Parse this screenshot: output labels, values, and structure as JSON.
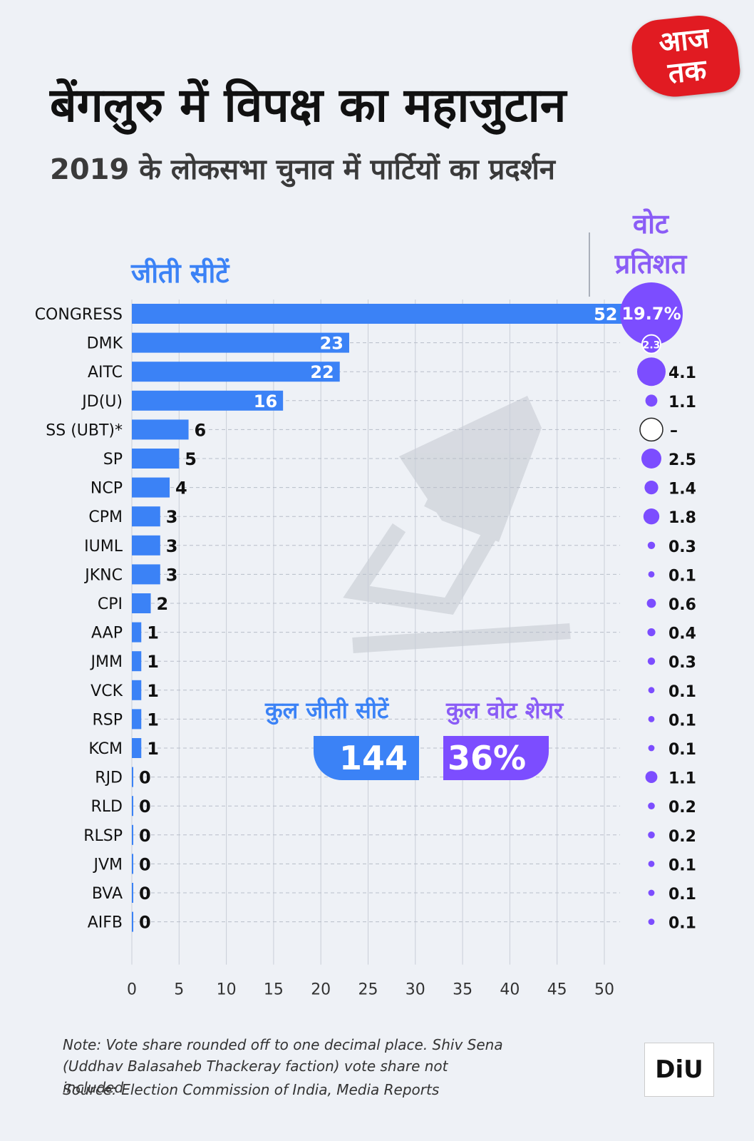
{
  "header": {
    "title": "बेंगलुरु में विपक्ष का महाजुटान",
    "subtitle": "2019 के लोकसभा चुनाव में पार्टियों का प्रदर्शन",
    "logo_line1": "आज",
    "logo_line2": "तक"
  },
  "seats_heading": "जीती सीटें",
  "vote_heading_line1": "वोट",
  "vote_heading_line2": "प्रतिशत",
  "totals": {
    "seats_label": "कुल जीती सीटें",
    "seats_value": "144",
    "vote_label": "कुल वोट शेयर",
    "vote_value": "36%"
  },
  "chart_data": {
    "type": "bar",
    "orientation": "horizontal",
    "categories": [
      "CONGRESS",
      "DMK",
      "AITC",
      "JD(U)",
      "SS (UBT)*",
      "SP",
      "NCP",
      "CPM",
      "IUML",
      "JKNC",
      "CPI",
      "AAP",
      "JMM",
      "VCK",
      "RSP",
      "KCM",
      "RJD",
      "RLD",
      "RLSP",
      "JVM",
      "BVA",
      "AIFB"
    ],
    "series": [
      {
        "name": "जीती सीटें",
        "values": [
          52,
          23,
          22,
          16,
          6,
          5,
          4,
          3,
          3,
          3,
          2,
          1,
          1,
          1,
          1,
          1,
          0,
          0,
          0,
          0,
          0,
          0
        ]
      },
      {
        "name": "वोट प्रतिशत",
        "values": [
          19.7,
          2.3,
          4.1,
          1.1,
          null,
          2.5,
          1.4,
          1.8,
          0.3,
          0.1,
          0.6,
          0.4,
          0.3,
          0.1,
          0.1,
          0.1,
          1.1,
          0.2,
          0.2,
          0.1,
          0.1,
          0.1
        ]
      }
    ],
    "vote_labels": [
      "19.7%",
      "2.3",
      "4.1",
      "1.1",
      "–",
      "2.5",
      "1.4",
      "1.8",
      "0.3",
      "0.1",
      "0.6",
      "0.4",
      "0.3",
      "0.1",
      "0.1",
      "0.1",
      "1.1",
      "0.2",
      "0.2",
      "0.1",
      "0.1",
      "0.1"
    ],
    "xlim": [
      0,
      50
    ],
    "xticks": [
      0,
      5,
      10,
      15,
      20,
      25,
      30,
      35,
      40,
      45,
      50
    ],
    "grid": true,
    "colors": {
      "bar": "#3b82f6",
      "bubble": "#7c4dff",
      "text": "#111111"
    }
  },
  "note": "Note: Vote share rounded off to one decimal place. Shiv Sena (Uddhav Balasaheb Thackeray faction) vote share not included",
  "source": "Source: Election Commission of India, Media Reports",
  "footer_logo": "DiU"
}
